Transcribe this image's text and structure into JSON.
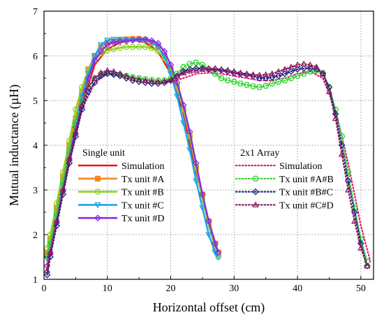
{
  "chart_data": {
    "type": "line",
    "xlabel": "Horizontal offset (cm)",
    "ylabel": "Mutual inductance (µH)",
    "xlim": [
      0,
      52
    ],
    "ylim": [
      1,
      7
    ],
    "x_ticks": [
      0,
      10,
      20,
      30,
      40,
      50
    ],
    "y_ticks": [
      1,
      2,
      3,
      4,
      5,
      6,
      7
    ],
    "grid": true,
    "legend_groups": [
      {
        "title": "Single unit",
        "placement": "center-left",
        "series": [
          0,
          1,
          2,
          3,
          4
        ]
      },
      {
        "title": "2x1 Array",
        "placement": "center-right",
        "series": [
          5,
          6,
          7,
          8
        ]
      }
    ],
    "series": [
      {
        "name": "Simulation",
        "color": "#e8141c",
        "style": "solid",
        "marker": "none",
        "x": [
          0.5,
          2,
          4,
          6,
          8,
          10,
          12,
          14,
          16,
          18,
          20,
          22,
          24,
          26,
          27.5
        ],
        "y": [
          1.4,
          2.4,
          3.7,
          4.9,
          5.8,
          6.15,
          6.3,
          6.35,
          6.3,
          6.1,
          5.6,
          4.7,
          3.4,
          2.3,
          1.6
        ]
      },
      {
        "name": "Tx unit #A",
        "color": "#f5891f",
        "style": "solid",
        "marker": "square",
        "x": [
          0.5,
          1,
          2,
          3,
          4,
          5,
          6,
          7,
          8,
          9,
          10,
          11,
          12,
          13,
          14,
          15,
          16,
          17,
          18,
          19,
          20,
          21,
          22,
          23,
          24,
          25,
          26,
          27,
          27.5
        ],
        "y": [
          1.6,
          1.9,
          2.6,
          3.3,
          4.0,
          4.6,
          5.2,
          5.7,
          6.0,
          6.2,
          6.3,
          6.33,
          6.35,
          6.37,
          6.38,
          6.38,
          6.36,
          6.3,
          6.2,
          6.0,
          5.7,
          5.3,
          4.8,
          4.2,
          3.5,
          2.9,
          2.3,
          1.8,
          1.6
        ]
      },
      {
        "name": "Tx unit #B",
        "color": "#8fd11e",
        "style": "solid",
        "marker": "circle",
        "x": [
          0.5,
          1,
          2,
          3,
          4,
          5,
          6,
          7,
          8,
          9,
          10,
          11,
          12,
          13,
          14,
          15,
          16,
          17,
          18,
          19,
          20,
          21,
          22,
          23,
          24,
          25,
          26,
          27,
          27.5
        ],
        "y": [
          1.7,
          2.0,
          2.7,
          3.4,
          4.1,
          4.8,
          5.3,
          5.7,
          5.9,
          6.05,
          6.12,
          6.15,
          6.18,
          6.2,
          6.2,
          6.2,
          6.2,
          6.17,
          6.1,
          5.95,
          5.7,
          5.3,
          4.8,
          4.2,
          3.5,
          2.8,
          2.2,
          1.7,
          1.5
        ]
      },
      {
        "name": "Tx unit #C",
        "color": "#1aa6e8",
        "style": "solid",
        "marker": "triangle-down",
        "x": [
          0.5,
          1,
          2,
          3,
          4,
          5,
          6,
          7,
          8,
          9,
          10,
          11,
          12,
          13,
          14,
          15,
          16,
          17,
          18,
          19,
          20,
          21,
          22,
          23,
          24,
          25,
          26,
          27,
          27.5
        ],
        "y": [
          1.5,
          1.8,
          2.4,
          3.1,
          3.8,
          4.5,
          5.1,
          5.6,
          6.0,
          6.25,
          6.35,
          6.37,
          6.37,
          6.36,
          6.35,
          6.35,
          6.34,
          6.3,
          6.2,
          6.0,
          5.6,
          5.1,
          4.5,
          3.9,
          3.2,
          2.6,
          2.0,
          1.6,
          1.5
        ]
      },
      {
        "name": "Tx unit #D",
        "color": "#8a2be2",
        "style": "solid",
        "marker": "diamond",
        "x": [
          0.5,
          1,
          2,
          3,
          4,
          5,
          6,
          7,
          8,
          9,
          10,
          11,
          12,
          13,
          14,
          15,
          16,
          17,
          18,
          19,
          20,
          21,
          22,
          23,
          24,
          25,
          26,
          27,
          27.5
        ],
        "y": [
          1.3,
          1.6,
          2.3,
          3.0,
          3.7,
          4.4,
          5.0,
          5.5,
          5.9,
          6.1,
          6.25,
          6.3,
          6.32,
          6.33,
          6.35,
          6.37,
          6.37,
          6.34,
          6.28,
          6.1,
          5.8,
          5.4,
          4.9,
          4.3,
          3.6,
          2.9,
          2.3,
          1.8,
          1.6
        ]
      },
      {
        "name": "Simulation",
        "color": "#e8147a",
        "style": "dotted",
        "marker": "none",
        "x": [
          0.5,
          2,
          4,
          6,
          8,
          10,
          12,
          14,
          16,
          18,
          20,
          22,
          24,
          26,
          28,
          30,
          32,
          34,
          36,
          38,
          40,
          42,
          44,
          46,
          48,
          50,
          51.5
        ],
        "y": [
          1.3,
          2.3,
          3.6,
          4.8,
          5.4,
          5.6,
          5.55,
          5.45,
          5.4,
          5.4,
          5.42,
          5.5,
          5.6,
          5.62,
          5.6,
          5.55,
          5.5,
          5.45,
          5.45,
          5.5,
          5.6,
          5.65,
          5.5,
          4.8,
          3.6,
          2.2,
          1.4
        ]
      },
      {
        "name": "Tx unit #A#B",
        "color": "#2bd42b",
        "style": "dotted",
        "marker": "hexagon",
        "x": [
          0.5,
          1,
          2,
          3,
          4,
          5,
          6,
          7,
          8,
          9,
          10,
          11,
          12,
          13,
          14,
          15,
          16,
          17,
          18,
          19,
          20,
          21,
          22,
          23,
          24,
          25,
          26,
          27,
          28,
          29,
          30,
          31,
          32,
          33,
          34,
          35,
          36,
          37,
          38,
          39,
          40,
          41,
          42,
          43,
          44,
          45,
          46,
          47,
          48,
          49,
          50,
          51
        ],
        "y": [
          1.5,
          1.8,
          2.5,
          3.2,
          3.9,
          4.5,
          5.0,
          5.3,
          5.5,
          5.6,
          5.62,
          5.6,
          5.58,
          5.55,
          5.52,
          5.5,
          5.48,
          5.46,
          5.45,
          5.45,
          5.5,
          5.6,
          5.75,
          5.82,
          5.85,
          5.8,
          5.7,
          5.6,
          5.5,
          5.45,
          5.42,
          5.38,
          5.35,
          5.32,
          5.3,
          5.33,
          5.38,
          5.42,
          5.45,
          5.5,
          5.55,
          5.6,
          5.65,
          5.67,
          5.62,
          5.3,
          4.8,
          4.2,
          3.4,
          2.6,
          1.9,
          1.4
        ]
      },
      {
        "name": "Tx unit #B#C",
        "color": "#1c2285",
        "style": "dotted",
        "marker": "diamond",
        "x": [
          0.5,
          1,
          2,
          3,
          4,
          5,
          6,
          7,
          8,
          9,
          10,
          11,
          12,
          13,
          14,
          15,
          16,
          17,
          18,
          19,
          20,
          21,
          22,
          23,
          24,
          25,
          26,
          27,
          28,
          29,
          30,
          31,
          32,
          33,
          34,
          35,
          36,
          37,
          38,
          39,
          40,
          41,
          42,
          43,
          44,
          45,
          46,
          47,
          48,
          49,
          50,
          51
        ],
        "y": [
          1.1,
          1.5,
          2.2,
          2.9,
          3.6,
          4.2,
          4.8,
          5.2,
          5.4,
          5.55,
          5.6,
          5.58,
          5.55,
          5.5,
          5.45,
          5.42,
          5.4,
          5.38,
          5.38,
          5.4,
          5.45,
          5.55,
          5.65,
          5.7,
          5.72,
          5.72,
          5.7,
          5.7,
          5.68,
          5.65,
          5.62,
          5.6,
          5.58,
          5.55,
          5.5,
          5.5,
          5.52,
          5.55,
          5.6,
          5.65,
          5.7,
          5.72,
          5.72,
          5.7,
          5.6,
          5.3,
          4.7,
          4.0,
          3.2,
          2.5,
          1.8,
          1.3
        ]
      },
      {
        "name": "Tx unit #C#D",
        "color": "#8b1a5e",
        "style": "dotted",
        "marker": "triangle-up",
        "x": [
          0.5,
          1,
          2,
          3,
          4,
          5,
          6,
          7,
          8,
          9,
          10,
          11,
          12,
          13,
          14,
          15,
          16,
          17,
          18,
          19,
          20,
          21,
          22,
          23,
          24,
          25,
          26,
          27,
          28,
          29,
          30,
          31,
          32,
          33,
          34,
          35,
          36,
          37,
          38,
          39,
          40,
          41,
          42,
          43,
          44,
          45,
          46,
          47,
          48,
          49,
          50,
          51
        ],
        "y": [
          1.2,
          1.6,
          2.3,
          3.0,
          3.7,
          4.3,
          4.9,
          5.3,
          5.5,
          5.62,
          5.67,
          5.65,
          5.6,
          5.55,
          5.5,
          5.47,
          5.45,
          5.43,
          5.42,
          5.43,
          5.47,
          5.55,
          5.62,
          5.66,
          5.68,
          5.7,
          5.72,
          5.72,
          5.7,
          5.68,
          5.65,
          5.62,
          5.6,
          5.58,
          5.57,
          5.58,
          5.6,
          5.65,
          5.7,
          5.75,
          5.8,
          5.82,
          5.8,
          5.75,
          5.6,
          5.2,
          4.6,
          3.8,
          3.0,
          2.3,
          1.7,
          1.3
        ]
      }
    ]
  }
}
